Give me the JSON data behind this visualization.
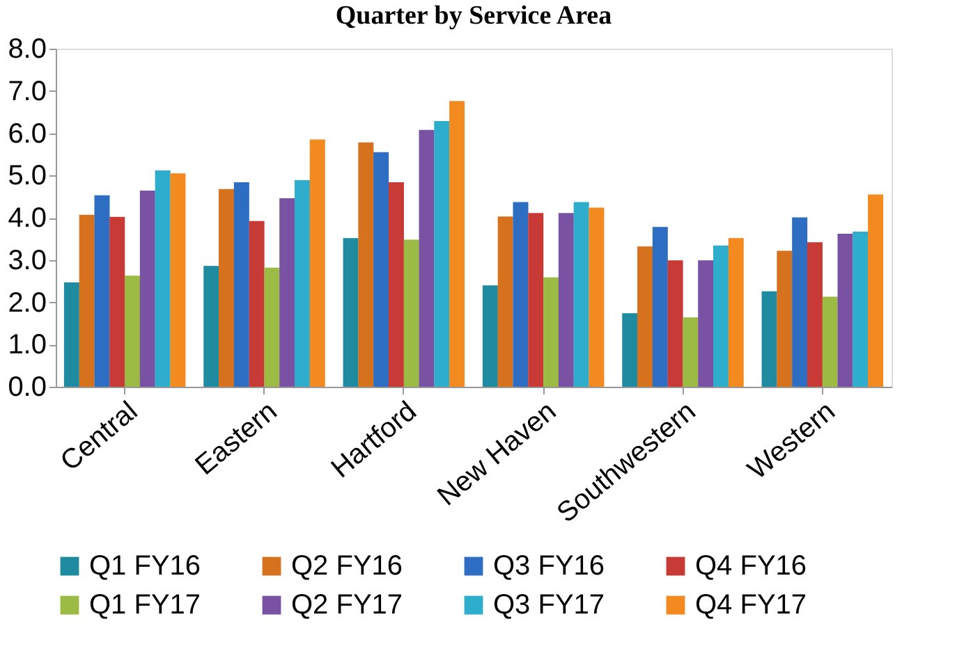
{
  "chart_data": {
    "type": "bar",
    "title": "Quarter by Service Area",
    "categories": [
      "Central",
      "Eastern",
      "Hartford",
      "New Haven",
      "Southwestern",
      "Western"
    ],
    "series": [
      {
        "name": "Q1 FY16",
        "color": "#1f8ba0",
        "values": [
          2.47,
          2.86,
          3.52,
          2.4,
          1.74,
          2.26
        ]
      },
      {
        "name": "Q2 FY16",
        "color": "#d6711e",
        "values": [
          4.07,
          4.68,
          5.78,
          4.03,
          3.32,
          3.22
        ]
      },
      {
        "name": "Q3 FY16",
        "color": "#2e6ec2",
        "values": [
          4.53,
          4.84,
          5.55,
          4.37,
          3.78,
          4.01
        ]
      },
      {
        "name": "Q4 FY16",
        "color": "#c83a36",
        "values": [
          4.02,
          3.92,
          4.84,
          4.11,
          2.99,
          3.42
        ]
      },
      {
        "name": "Q1 FY17",
        "color": "#9bbb45",
        "values": [
          2.63,
          2.82,
          3.48,
          2.59,
          1.64,
          2.13
        ]
      },
      {
        "name": "Q2 FY17",
        "color": "#7952a3",
        "values": [
          4.64,
          4.46,
          6.08,
          4.11,
          2.99,
          3.62
        ]
      },
      {
        "name": "Q3 FY17",
        "color": "#2eaecc",
        "values": [
          5.12,
          4.89,
          6.29,
          4.37,
          3.34,
          3.67
        ]
      },
      {
        "name": "Q4 FY17",
        "color": "#f28a20",
        "values": [
          5.05,
          5.85,
          6.76,
          4.24,
          3.52,
          4.55
        ]
      }
    ],
    "ylim": [
      0,
      8
    ],
    "yticks": [
      {
        "value": 0,
        "label": "0.0"
      },
      {
        "value": 1,
        "label": "1.0"
      },
      {
        "value": 2,
        "label": "2.0"
      },
      {
        "value": 3,
        "label": "3.0"
      },
      {
        "value": 4,
        "label": "4.0"
      },
      {
        "value": 5,
        "label": "5.0"
      },
      {
        "value": 6,
        "label": "6.0"
      },
      {
        "value": 7,
        "label": "7.0"
      },
      {
        "value": 8,
        "label": "8.0"
      }
    ],
    "grid": false,
    "legend": "bottom"
  }
}
